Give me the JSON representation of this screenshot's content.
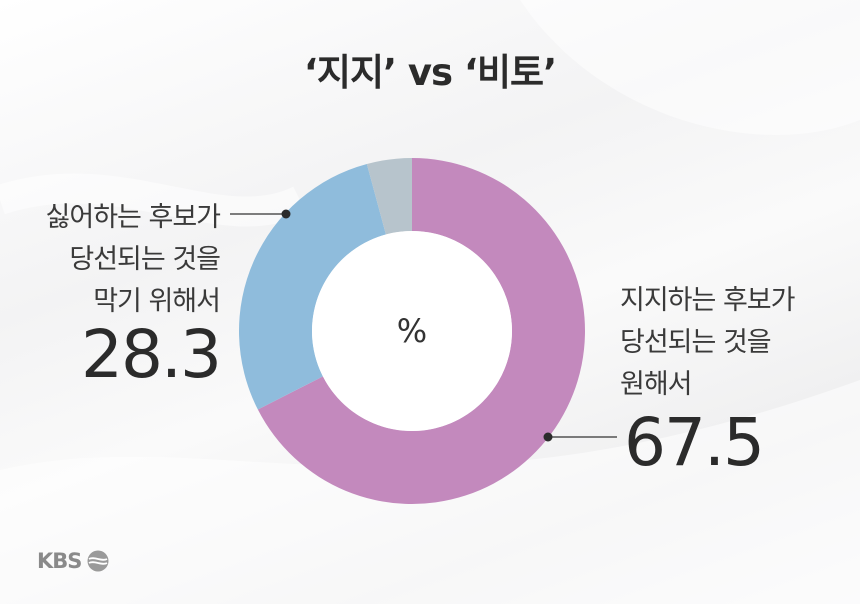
{
  "chart_data": {
    "type": "pie",
    "title": "‘지지’ vs ‘비토’",
    "center_label": "%",
    "slices": [
      {
        "label": [
          "지지하는 후보가",
          "당선되는 것을",
          "원해서"
        ],
        "value": 67.5,
        "color": "#c389bd"
      },
      {
        "label": [
          "싫어하는 후보가",
          "당선되는 것을",
          "막기 위해서"
        ],
        "value": 28.3,
        "color": "#8fbcdc"
      },
      {
        "label": "",
        "value": 4.2,
        "color": "#b7c4cc"
      }
    ]
  },
  "logo": {
    "text": "KBS",
    "icon": "kbs-logo-icon"
  }
}
